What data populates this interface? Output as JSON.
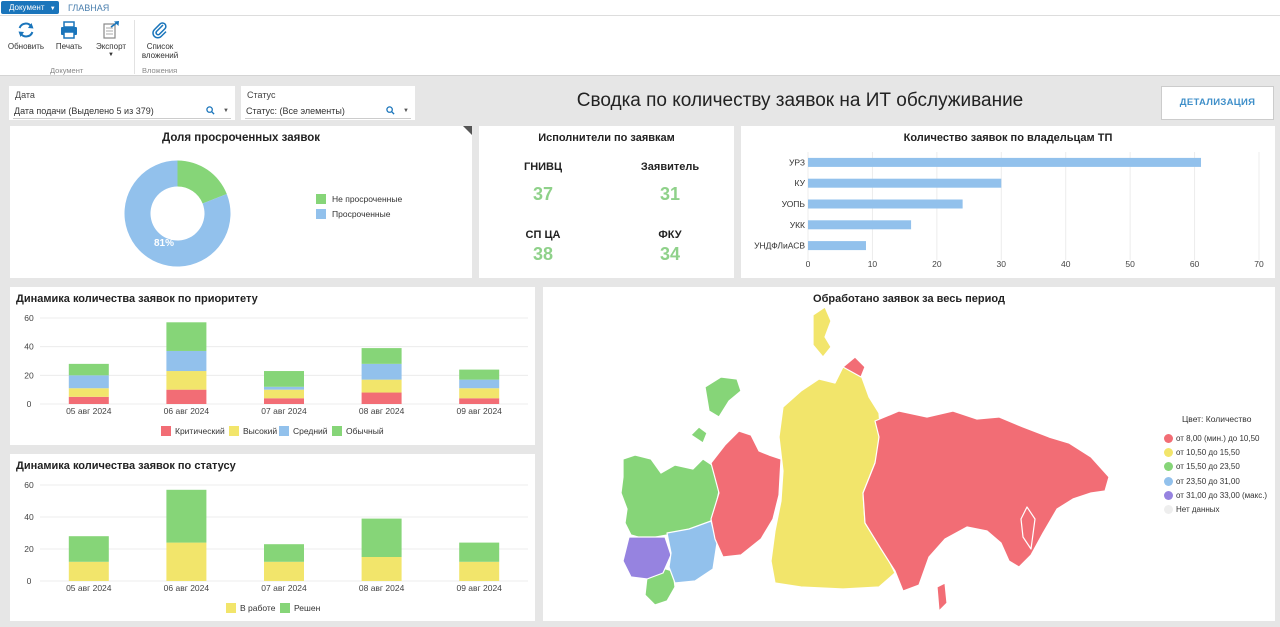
{
  "topbar": {
    "doc_button": "Документ",
    "main_tab": "ГЛАВНАЯ"
  },
  "ribbon": {
    "refresh": "Обновить",
    "print": "Печать",
    "export": "Экспорт",
    "attachments_line1": "Список",
    "attachments_line2": "вложений",
    "group_document": "Документ",
    "group_attachments": "Вложения"
  },
  "filters": {
    "date": {
      "label": "Дата",
      "value": "Дата подачи (Выделено 5 из 379)"
    },
    "status": {
      "label": "Статус",
      "value": "Статус: (Все элементы)"
    }
  },
  "dashboard": {
    "title": "Сводка по количеству заявок на ИТ обслуживание",
    "detail_button": "ДЕТАЛИЗАЦИЯ"
  },
  "overdue": {
    "title": "Доля просроченных заявок",
    "legend": [
      "Не просроченные",
      "Просроченные"
    ],
    "slice_label": "81%"
  },
  "executors": {
    "title": "Исполнители по заявкам",
    "items": [
      {
        "name": "ГНИВЦ",
        "value": "37"
      },
      {
        "name": "Заявитель",
        "value": "31"
      },
      {
        "name": "СП ЦА",
        "value": "38"
      },
      {
        "name": "ФКУ",
        "value": "34"
      }
    ]
  },
  "owners_title": "Количество заявок по владельцам ТП",
  "priority_title": "Динамика количества заявок по приоритету",
  "status_title": "Динамика количества заявок по статусу",
  "map": {
    "title": "Обработано заявок за весь период",
    "legend_title": "Цвет: Количество",
    "legend": [
      {
        "label": "от 8,00 (мин.) до 10,50",
        "color": "#f26d75"
      },
      {
        "label": "от 10,50 до 15,50",
        "color": "#f2e56b"
      },
      {
        "label": "от 15,50 до 23,50",
        "color": "#86d578"
      },
      {
        "label": "от 23,50 до 31,00",
        "color": "#92c1ec"
      },
      {
        "label": "от 31,00 до 33,00 (макс.)",
        "color": "#9683e0"
      },
      {
        "label": "Нет данных",
        "color": "#eeeeee"
      }
    ]
  },
  "chart_data": [
    {
      "type": "pie",
      "title": "Доля просроченных заявок",
      "categories": [
        "Не просроченные",
        "Просроченные"
      ],
      "values": [
        19,
        81
      ],
      "colors": [
        "#86d578",
        "#92c1ec"
      ],
      "donut": true
    },
    {
      "type": "bar",
      "orientation": "horizontal",
      "title": "Количество заявок по владельцам ТП",
      "categories": [
        "УРЗ",
        "КУ",
        "УОПЬ",
        "УКК",
        "УНДФЛиАСВ"
      ],
      "values": [
        61,
        30,
        24,
        16,
        9
      ],
      "xlim": [
        0,
        70
      ],
      "xticks": [
        "0",
        "10",
        "20",
        "30",
        "40",
        "50",
        "60",
        "70"
      ],
      "color": "#92c1ec",
      "grid": true
    },
    {
      "type": "bar",
      "stacked": true,
      "title": "Динамика количества заявок по приоритету",
      "categories": [
        "05 авг 2024",
        "06 авг 2024",
        "07 авг 2024",
        "08 авг 2024",
        "09 авг 2024"
      ],
      "series": [
        {
          "name": "Критический",
          "color": "#f26d75",
          "values": [
            5,
            10,
            4,
            8,
            4
          ]
        },
        {
          "name": "Высокий",
          "color": "#f2e56b",
          "values": [
            6,
            13,
            6,
            9,
            7
          ]
        },
        {
          "name": "Средний",
          "color": "#92c1ec",
          "values": [
            9,
            14,
            2,
            11,
            6
          ]
        },
        {
          "name": "Обычный",
          "color": "#86d578",
          "values": [
            8,
            20,
            11,
            11,
            7
          ]
        }
      ],
      "ylim": [
        0,
        60
      ],
      "yticks": [
        "0",
        "20",
        "40",
        "60"
      ],
      "legend": "bottom",
      "grid": true
    },
    {
      "type": "bar",
      "stacked": true,
      "title": "Динамика количества заявок по статусу",
      "categories": [
        "05 авг 2024",
        "06 авг 2024",
        "07 авг 2024",
        "08 авг 2024",
        "09 авг 2024"
      ],
      "series": [
        {
          "name": "В работе",
          "color": "#f2e56b",
          "values": [
            12,
            24,
            12,
            15,
            12
          ]
        },
        {
          "name": "Решен",
          "color": "#86d578",
          "values": [
            16,
            33,
            11,
            24,
            12
          ]
        }
      ],
      "ylim": [
        0,
        60
      ],
      "yticks": [
        "0",
        "20",
        "40",
        "60"
      ],
      "legend": "bottom",
      "grid": true
    }
  ]
}
